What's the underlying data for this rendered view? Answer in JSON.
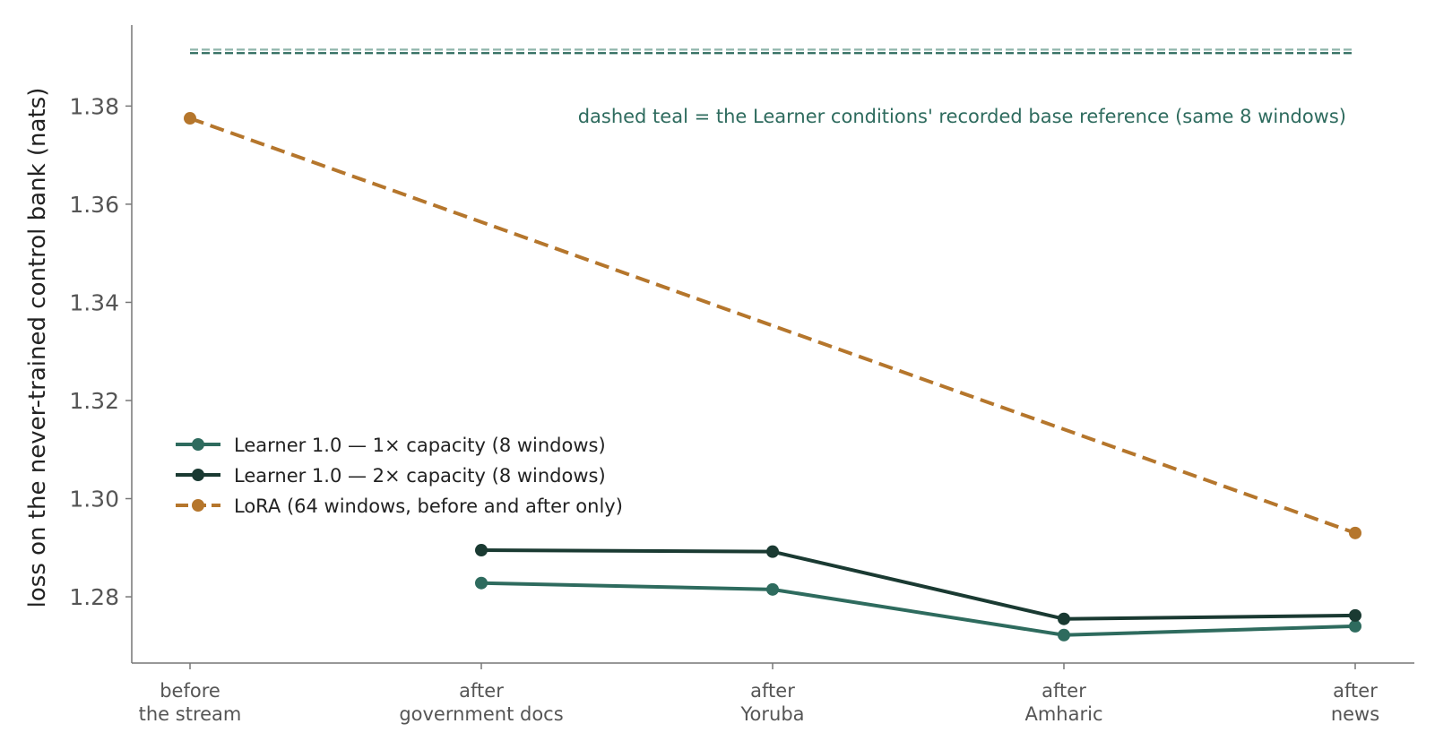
{
  "chart_data": {
    "type": "line",
    "categories": [
      [
        "before",
        "the stream"
      ],
      [
        "after",
        "government docs"
      ],
      [
        "after",
        "Yoruba"
      ],
      [
        "after",
        "Amharic"
      ],
      [
        "after",
        "news"
      ]
    ],
    "ylabel": "loss on the never-trained control bank (nats)",
    "ylim": [
      1.2665,
      1.3965
    ],
    "yticks": [
      1.28,
      1.3,
      1.32,
      1.34,
      1.36,
      1.38
    ],
    "ytick_labels": [
      "1.28",
      "1.30",
      "1.32",
      "1.34",
      "1.36",
      "1.38"
    ],
    "grid": false,
    "legend_position": "center-left",
    "series": [
      {
        "name": "Learner 1.0 — 1× capacity (8 windows)",
        "color": "#2e6b5e",
        "style": "solid",
        "values": [
          null,
          1.2828,
          1.2815,
          1.2722,
          1.274
        ]
      },
      {
        "name": "Learner 1.0 — 2× capacity (8 windows)",
        "color": "#1a3a32",
        "style": "solid",
        "values": [
          null,
          1.2895,
          1.2892,
          1.2755,
          1.2762
        ]
      },
      {
        "name": "LoRA (64 windows, before and after only)",
        "color": "#b5762c",
        "style": "dashed",
        "values": [
          1.3775,
          null,
          null,
          null,
          1.293
        ]
      }
    ],
    "reference_lines": [
      {
        "value": 1.3908,
        "color": "#2e6b5e",
        "style": "dashed"
      },
      {
        "value": 1.3915,
        "color": "#8fb5ab",
        "style": "dashed"
      }
    ],
    "annotation": {
      "text": "dashed teal = the Learner conditions' recorded base reference (same 8 windows)",
      "color": "#2e6b5e"
    }
  }
}
